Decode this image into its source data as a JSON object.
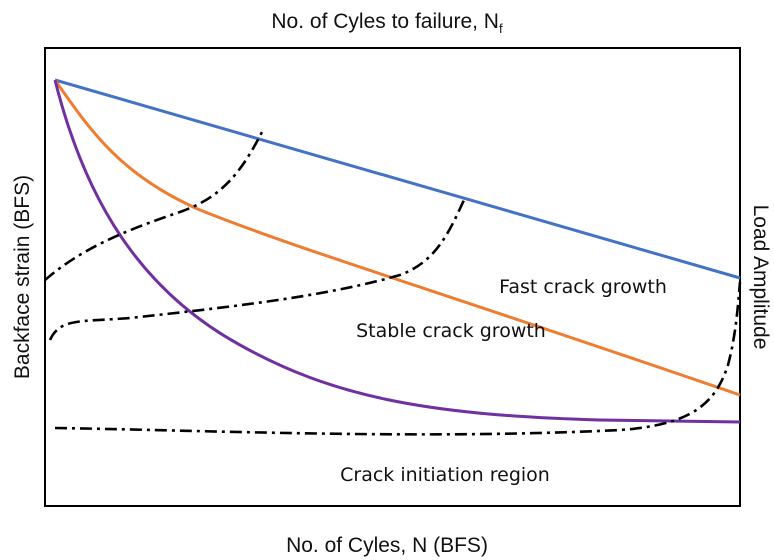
{
  "top_label": {
    "text": "No. of Cyles to failure, N",
    "subscript": "f"
  },
  "left_label": "Backface strain (BFS)",
  "right_label": "Load Amplitude",
  "bottom_label": "No. of Cyles, N (BFS)",
  "regions": [
    "Fast crack growth",
    "Stable crack growth",
    "Crack initiation region"
  ]
}
